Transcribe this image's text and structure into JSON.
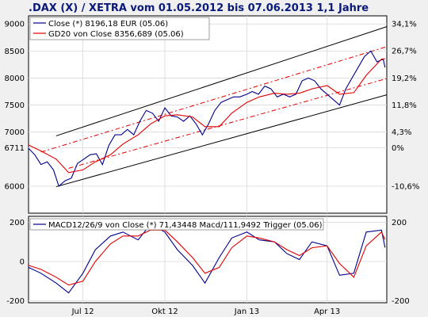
{
  "title": ".DAX (X) / XETRA vom 01.05.2012 bis 07.06.2013 1,1 Jahre",
  "colors": {
    "background": "#f0f0f0",
    "plot_bg": "#ffffff",
    "close": "#00008b",
    "gd20": "#e00000",
    "channel": "#000000",
    "channel_mid": "#e00000",
    "title": "#0a1a7a"
  },
  "chart_data": [
    {
      "type": "line",
      "legend": {
        "placement": "top-left",
        "entries": [
          "Close (*) 8196,18 EUR (05.06)",
          "GD20 von Close 8356,689 (05.06)"
        ]
      },
      "x_tick_labels": [
        "Jul 12",
        "Okt 12",
        "Jan 13",
        "Apr 13"
      ],
      "x_tick_dates": [
        "2012-07-01",
        "2012-10-01",
        "2013-01-01",
        "2013-04-01"
      ],
      "x_range": [
        "2012-05-01",
        "2013-06-07"
      ],
      "ylim_left": [
        5500,
        9150
      ],
      "y_ticks_left": [
        {
          "label": "9000",
          "value": 9000
        },
        {
          "label": "8500",
          "value": 8500
        },
        {
          "label": "8000",
          "value": 8000
        },
        {
          "label": "7500",
          "value": 7500
        },
        {
          "label": "7000",
          "value": 7000
        },
        {
          "label": "6711",
          "value": 6711
        },
        {
          "label": "6000",
          "value": 6000
        }
      ],
      "y_ticks_right": [
        {
          "label": "34,1%",
          "value": 9000
        },
        {
          "label": "26,7%",
          "value": 8503
        },
        {
          "label": "19,2%",
          "value": 8000
        },
        {
          "label": "11,8%",
          "value": 7503
        },
        {
          "label": "4,3%",
          "value": 7000
        },
        {
          "label": "0%",
          "value": 6711
        },
        {
          "label": "-10,6%",
          "value": 6000
        }
      ],
      "grid": true,
      "series": [
        {
          "name": "Close (*) 8196,18 EUR (05.06)",
          "x": [
            "2012-05-01",
            "2012-05-08",
            "2012-05-15",
            "2012-05-22",
            "2012-05-29",
            "2012-06-04",
            "2012-06-11",
            "2012-06-18",
            "2012-06-25",
            "2012-07-02",
            "2012-07-09",
            "2012-07-16",
            "2012-07-23",
            "2012-07-30",
            "2012-08-06",
            "2012-08-13",
            "2012-08-20",
            "2012-08-27",
            "2012-09-03",
            "2012-09-10",
            "2012-09-17",
            "2012-09-24",
            "2012-10-01",
            "2012-10-08",
            "2012-10-15",
            "2012-10-22",
            "2012-10-29",
            "2012-11-05",
            "2012-11-12",
            "2012-11-19",
            "2012-11-26",
            "2012-12-03",
            "2012-12-10",
            "2012-12-17",
            "2012-12-24",
            "2013-01-01",
            "2013-01-07",
            "2013-01-14",
            "2013-01-21",
            "2013-01-28",
            "2013-02-04",
            "2013-02-11",
            "2013-02-18",
            "2013-02-25",
            "2013-03-04",
            "2013-03-11",
            "2013-03-18",
            "2013-03-25",
            "2013-04-01",
            "2013-04-08",
            "2013-04-15",
            "2013-04-22",
            "2013-04-29",
            "2013-05-06",
            "2013-05-13",
            "2013-05-20",
            "2013-05-27",
            "2013-06-03",
            "2013-06-05"
          ],
          "y": [
            6700,
            6580,
            6400,
            6450,
            6300,
            6000,
            6100,
            6150,
            6420,
            6500,
            6580,
            6600,
            6400,
            6750,
            6950,
            6950,
            7050,
            6950,
            7200,
            7400,
            7350,
            7200,
            7450,
            7300,
            7280,
            7200,
            7300,
            7150,
            6950,
            7150,
            7400,
            7550,
            7600,
            7650,
            7650,
            7700,
            7750,
            7700,
            7850,
            7800,
            7650,
            7700,
            7650,
            7700,
            7950,
            8000,
            7950,
            7800,
            7700,
            7600,
            7500,
            7800,
            8000,
            8200,
            8400,
            8500,
            8300,
            8350,
            8196
          ]
        },
        {
          "name": "GD20 von Close 8356,689 (05.06)",
          "x": [
            "2012-05-01",
            "2012-05-15",
            "2012-06-01",
            "2012-06-15",
            "2012-07-01",
            "2012-07-15",
            "2012-08-01",
            "2012-08-15",
            "2012-09-01",
            "2012-09-15",
            "2012-10-01",
            "2012-10-15",
            "2012-11-01",
            "2012-11-15",
            "2012-12-01",
            "2012-12-15",
            "2013-01-01",
            "2013-01-15",
            "2013-02-01",
            "2013-02-15",
            "2013-03-01",
            "2013-03-15",
            "2013-04-01",
            "2013-04-15",
            "2013-05-01",
            "2013-05-15",
            "2013-06-01",
            "2013-06-05"
          ],
          "y": [
            6760,
            6650,
            6500,
            6250,
            6300,
            6450,
            6580,
            6780,
            6950,
            7150,
            7300,
            7320,
            7280,
            7100,
            7100,
            7350,
            7550,
            7650,
            7720,
            7700,
            7720,
            7800,
            7860,
            7700,
            7730,
            8050,
            8350,
            8357
          ]
        }
      ],
      "channel": {
        "upper": {
          "start": [
            "2012-06-01",
            6930
          ],
          "end": [
            "2013-06-07",
            8950
          ]
        },
        "lower": {
          "start": [
            "2012-06-01",
            5990
          ],
          "end": [
            "2013-06-07",
            7690
          ]
        },
        "mid_upper": {
          "start": [
            "2012-05-15",
            6630
          ],
          "end": [
            "2013-06-07",
            8580
          ]
        },
        "mid_lower": {
          "start": [
            "2012-06-15",
            6330
          ],
          "end": [
            "2013-06-07",
            7990
          ]
        }
      }
    },
    {
      "type": "line",
      "legend": {
        "placement": "top-left",
        "entries": [
          "MACD12/26/9 von Close (*) 71,43448 Macd/111,9492 Trigger (05.06)"
        ]
      },
      "ylim": [
        -210,
        230
      ],
      "y_ticks_left": [
        {
          "label": "200",
          "value": 200
        },
        {
          "label": "0",
          "value": 0
        },
        {
          "label": "-200",
          "value": -200
        }
      ],
      "y_ticks_right": [
        {
          "label": "200",
          "value": 200
        },
        {
          "label": "-200",
          "value": -200
        }
      ],
      "grid": true,
      "series": [
        {
          "name": "MACD12/26/9 von Close (*) 71,43448 Macd/111,9492",
          "x": [
            "2012-05-01",
            "2012-05-15",
            "2012-06-01",
            "2012-06-15",
            "2012-07-01",
            "2012-07-15",
            "2012-08-01",
            "2012-08-15",
            "2012-09-01",
            "2012-09-15",
            "2012-10-01",
            "2012-10-15",
            "2012-11-01",
            "2012-11-15",
            "2012-12-01",
            "2012-12-15",
            "2013-01-01",
            "2013-01-15",
            "2013-02-01",
            "2013-02-15",
            "2013-03-01",
            "2013-03-15",
            "2013-04-01",
            "2013-04-15",
            "2013-05-01",
            "2013-05-15",
            "2013-06-01",
            "2013-06-05"
          ],
          "y": [
            -30,
            -60,
            -110,
            -160,
            -60,
            60,
            130,
            150,
            110,
            190,
            150,
            60,
            -20,
            -110,
            20,
            120,
            150,
            110,
            100,
            40,
            10,
            100,
            80,
            -70,
            -60,
            150,
            160,
            71
          ]
        },
        {
          "name": "Trigger (05.06)",
          "x": [
            "2012-05-01",
            "2012-05-15",
            "2012-06-01",
            "2012-06-15",
            "2012-07-01",
            "2012-07-15",
            "2012-08-01",
            "2012-08-15",
            "2012-09-01",
            "2012-09-15",
            "2012-10-01",
            "2012-10-15",
            "2012-11-01",
            "2012-11-15",
            "2012-12-01",
            "2012-12-15",
            "2013-01-01",
            "2013-01-15",
            "2013-02-01",
            "2013-02-15",
            "2013-03-01",
            "2013-03-15",
            "2013-04-01",
            "2013-04-15",
            "2013-05-01",
            "2013-05-15",
            "2013-06-01",
            "2013-06-05"
          ],
          "y": [
            -20,
            -40,
            -80,
            -120,
            -100,
            0,
            90,
            130,
            130,
            160,
            160,
            100,
            20,
            -60,
            -30,
            70,
            130,
            120,
            100,
            60,
            30,
            70,
            80,
            -10,
            -80,
            80,
            150,
            112
          ]
        }
      ]
    }
  ]
}
